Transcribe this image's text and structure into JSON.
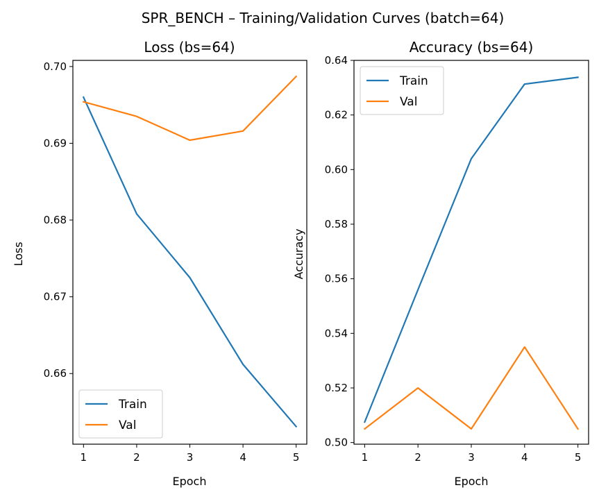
{
  "figure": {
    "suptitle": "SPR_BENCH – Training/Validation Curves (batch=64)"
  },
  "colors": {
    "train": "#1f77b4",
    "val": "#ff7f0e"
  },
  "chart_data": [
    {
      "type": "line",
      "title": "Loss (bs=64)",
      "xlabel": "Epoch",
      "ylabel": "Loss",
      "x": [
        1,
        2,
        3,
        4,
        5
      ],
      "x_ticks": [
        "1",
        "2",
        "3",
        "4",
        "5"
      ],
      "xlim": [
        0.8,
        5.2
      ],
      "ylim": [
        0.6508,
        0.7008
      ],
      "y_ticks": [
        "0.66",
        "0.67",
        "0.68",
        "0.69",
        "0.70"
      ],
      "y_tick_values": [
        0.66,
        0.67,
        0.68,
        0.69,
        0.7
      ],
      "legend": "lower-left",
      "grid": false,
      "series": [
        {
          "name": "Train",
          "values": [
            0.696,
            0.6808,
            0.6725,
            0.6612,
            0.6531
          ]
        },
        {
          "name": "Val",
          "values": [
            0.6954,
            0.6935,
            0.6904,
            0.6916,
            0.6987
          ]
        }
      ]
    },
    {
      "type": "line",
      "title": "Accuracy (bs=64)",
      "xlabel": "Epoch",
      "ylabel": "Accuracy",
      "x": [
        1,
        2,
        3,
        4,
        5
      ],
      "x_ticks": [
        "1",
        "2",
        "3",
        "4",
        "5"
      ],
      "xlim": [
        0.8,
        5.2
      ],
      "ylim": [
        0.4994,
        0.64
      ],
      "y_ticks": [
        "0.50",
        "0.52",
        "0.54",
        "0.56",
        "0.58",
        "0.60",
        "0.62",
        "0.64"
      ],
      "y_tick_values": [
        0.5,
        0.52,
        0.54,
        0.56,
        0.58,
        0.6,
        0.62,
        0.64
      ],
      "legend": "upper-left",
      "grid": false,
      "series": [
        {
          "name": "Train",
          "values": [
            0.5075,
            0.556,
            0.604,
            0.6313,
            0.6338
          ]
        },
        {
          "name": "Val",
          "values": [
            0.505,
            0.52,
            0.505,
            0.535,
            0.505
          ]
        }
      ]
    }
  ]
}
